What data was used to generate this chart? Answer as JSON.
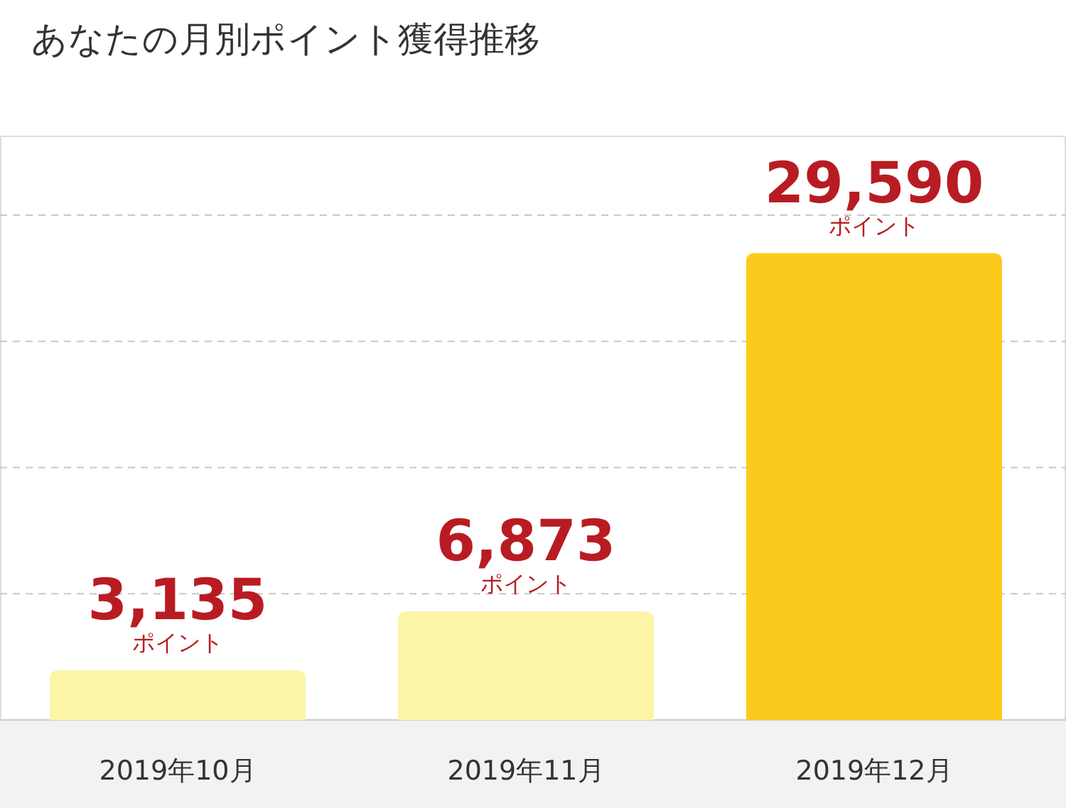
{
  "chart_data": {
    "type": "bar",
    "title": "あなたの月別ポイント獲得推移",
    "categories": [
      "2019年10月",
      "2019年11月",
      "2019年12月"
    ],
    "values": [
      3135,
      6873,
      29590
    ],
    "colors": [
      "#fdf5a6",
      "#fdf5a6",
      "#fcca1c"
    ],
    "value_labels": [
      "3,135\nポイント",
      "6,873\nポイント",
      "29,590\nポイント"
    ],
    "ylim": [
      0,
      37000
    ],
    "yticks": [
      {
        "value": 8000,
        "label": null
      },
      {
        "value": 16000,
        "label": null
      },
      {
        "value": 24000,
        "label": null
      },
      {
        "value": 32000,
        "label": null
      }
    ],
    "tick_labels": "x",
    "grid": "y",
    "line_style": "dashed"
  }
}
